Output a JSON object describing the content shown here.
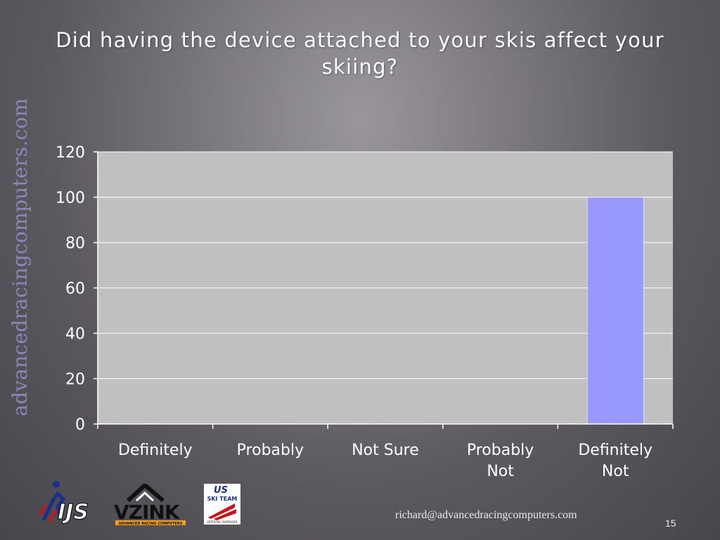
{
  "slide": {
    "title": "Did having the device attached to your skis affect your skiing?",
    "watermark": "advancedracingcomputers.com",
    "email": "richard@advancedracingcomputers.com",
    "page_number": "15"
  },
  "logos": [
    {
      "name": "ijs-logo",
      "text": "IJS"
    },
    {
      "name": "vzink-logo",
      "text": "VZINK",
      "subtext": "ADVANCED RACING COMPUTERS"
    },
    {
      "name": "us-ski-team-logo",
      "text": "US",
      "subtext": "SKI TEAM",
      "caption": "OFFICIAL SUPPLIER"
    }
  ],
  "chart_data": {
    "type": "bar",
    "title": "",
    "xlabel": "",
    "ylabel": "",
    "categories": [
      [
        "Definitely"
      ],
      [
        "Probably"
      ],
      [
        "Not Sure"
      ],
      [
        "Probably",
        "Not"
      ],
      [
        "Definitely",
        "Not"
      ]
    ],
    "values": [
      0,
      0,
      0,
      0,
      100
    ],
    "ylim": [
      0,
      120
    ],
    "yticks": [
      0,
      20,
      40,
      60,
      80,
      100,
      120
    ],
    "grid": true,
    "legend": "none",
    "colors": {
      "bar": "#9999ff",
      "plot_bg": "#c0c0c0",
      "gridline": "#ffffff",
      "axis": "#ffffff",
      "text": "#ffffff"
    }
  }
}
